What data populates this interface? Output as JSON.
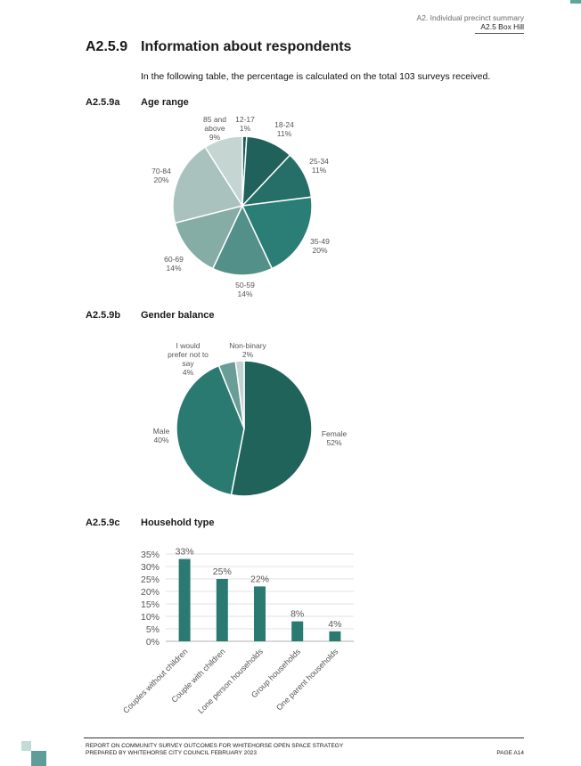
{
  "header": {
    "section": "A2. Individual precinct summary",
    "subsection": "A2.5 Box Hill"
  },
  "section": {
    "number": "A2.5.9",
    "title": "Information about respondents",
    "intro": "In the following table, the percentage is calculated on the total 103 surveys received."
  },
  "age": {
    "number": "A2.5.9a",
    "title": "Age range"
  },
  "gender": {
    "number": "A2.5.9b",
    "title": "Gender balance"
  },
  "household": {
    "number": "A2.5.9c",
    "title": "Household type"
  },
  "chart_data": [
    {
      "type": "pie",
      "title": "",
      "slices": [
        {
          "label": "12-17",
          "pct_label": "1%",
          "value": 1,
          "color": "#1f5d57"
        },
        {
          "label": "18-24",
          "pct_label": "11%",
          "value": 11,
          "color": "#21615b"
        },
        {
          "label": "25-34",
          "pct_label": "11%",
          "value": 11,
          "color": "#256f68"
        },
        {
          "label": "35-49",
          "pct_label": "20%",
          "value": 20,
          "color": "#2a7e75"
        },
        {
          "label": "50-59",
          "pct_label": "14%",
          "value": 14,
          "color": "#529089"
        },
        {
          "label": "60-69",
          "pct_label": "14%",
          "value": 14,
          "color": "#86aca6"
        },
        {
          "label": "70-84",
          "pct_label": "20%",
          "value": 20,
          "color": "#a9c2be"
        },
        {
          "label": "85 and above",
          "pct_label": "9%",
          "value": 9,
          "color": "#c5d5d1"
        }
      ]
    },
    {
      "type": "pie",
      "title": "",
      "slices": [
        {
          "label": "Female",
          "pct_label": "52%",
          "value": 52,
          "color": "#20635b"
        },
        {
          "label": "Male",
          "pct_label": "40%",
          "value": 40,
          "color": "#2a7a72"
        },
        {
          "label": "I would prefer not to say",
          "pct_label": "4%",
          "value": 4,
          "color": "#6a9d97"
        },
        {
          "label": "Non-binary",
          "pct_label": "2%",
          "value": 2,
          "color": "#c2d2ce"
        }
      ]
    },
    {
      "type": "bar",
      "title": "",
      "xlabel": "",
      "ylabel": "",
      "categories": [
        "Couples without children",
        "Couple with children",
        "Lone person households",
        "Group households",
        "One parent households"
      ],
      "values": [
        33,
        25,
        22,
        8,
        4
      ],
      "value_labels": [
        "33%",
        "25%",
        "22%",
        "8%",
        "4%"
      ],
      "y_ticks": [
        "0%",
        "5%",
        "10%",
        "15%",
        "20%",
        "25%",
        "30%",
        "35%"
      ],
      "ylim": [
        0,
        35
      ],
      "grid": true,
      "bar_color": "#2a7a72"
    }
  ],
  "footer": {
    "line1": "REPORT ON COMMUNITY SURVEY OUTCOMES FOR WHITEHORSE OPEN SPACE STRATEGY",
    "line2": "PREPARED BY WHITEHORSE CITY COUNCIL FEBRUARY 2023",
    "page": "PAGE A14"
  }
}
